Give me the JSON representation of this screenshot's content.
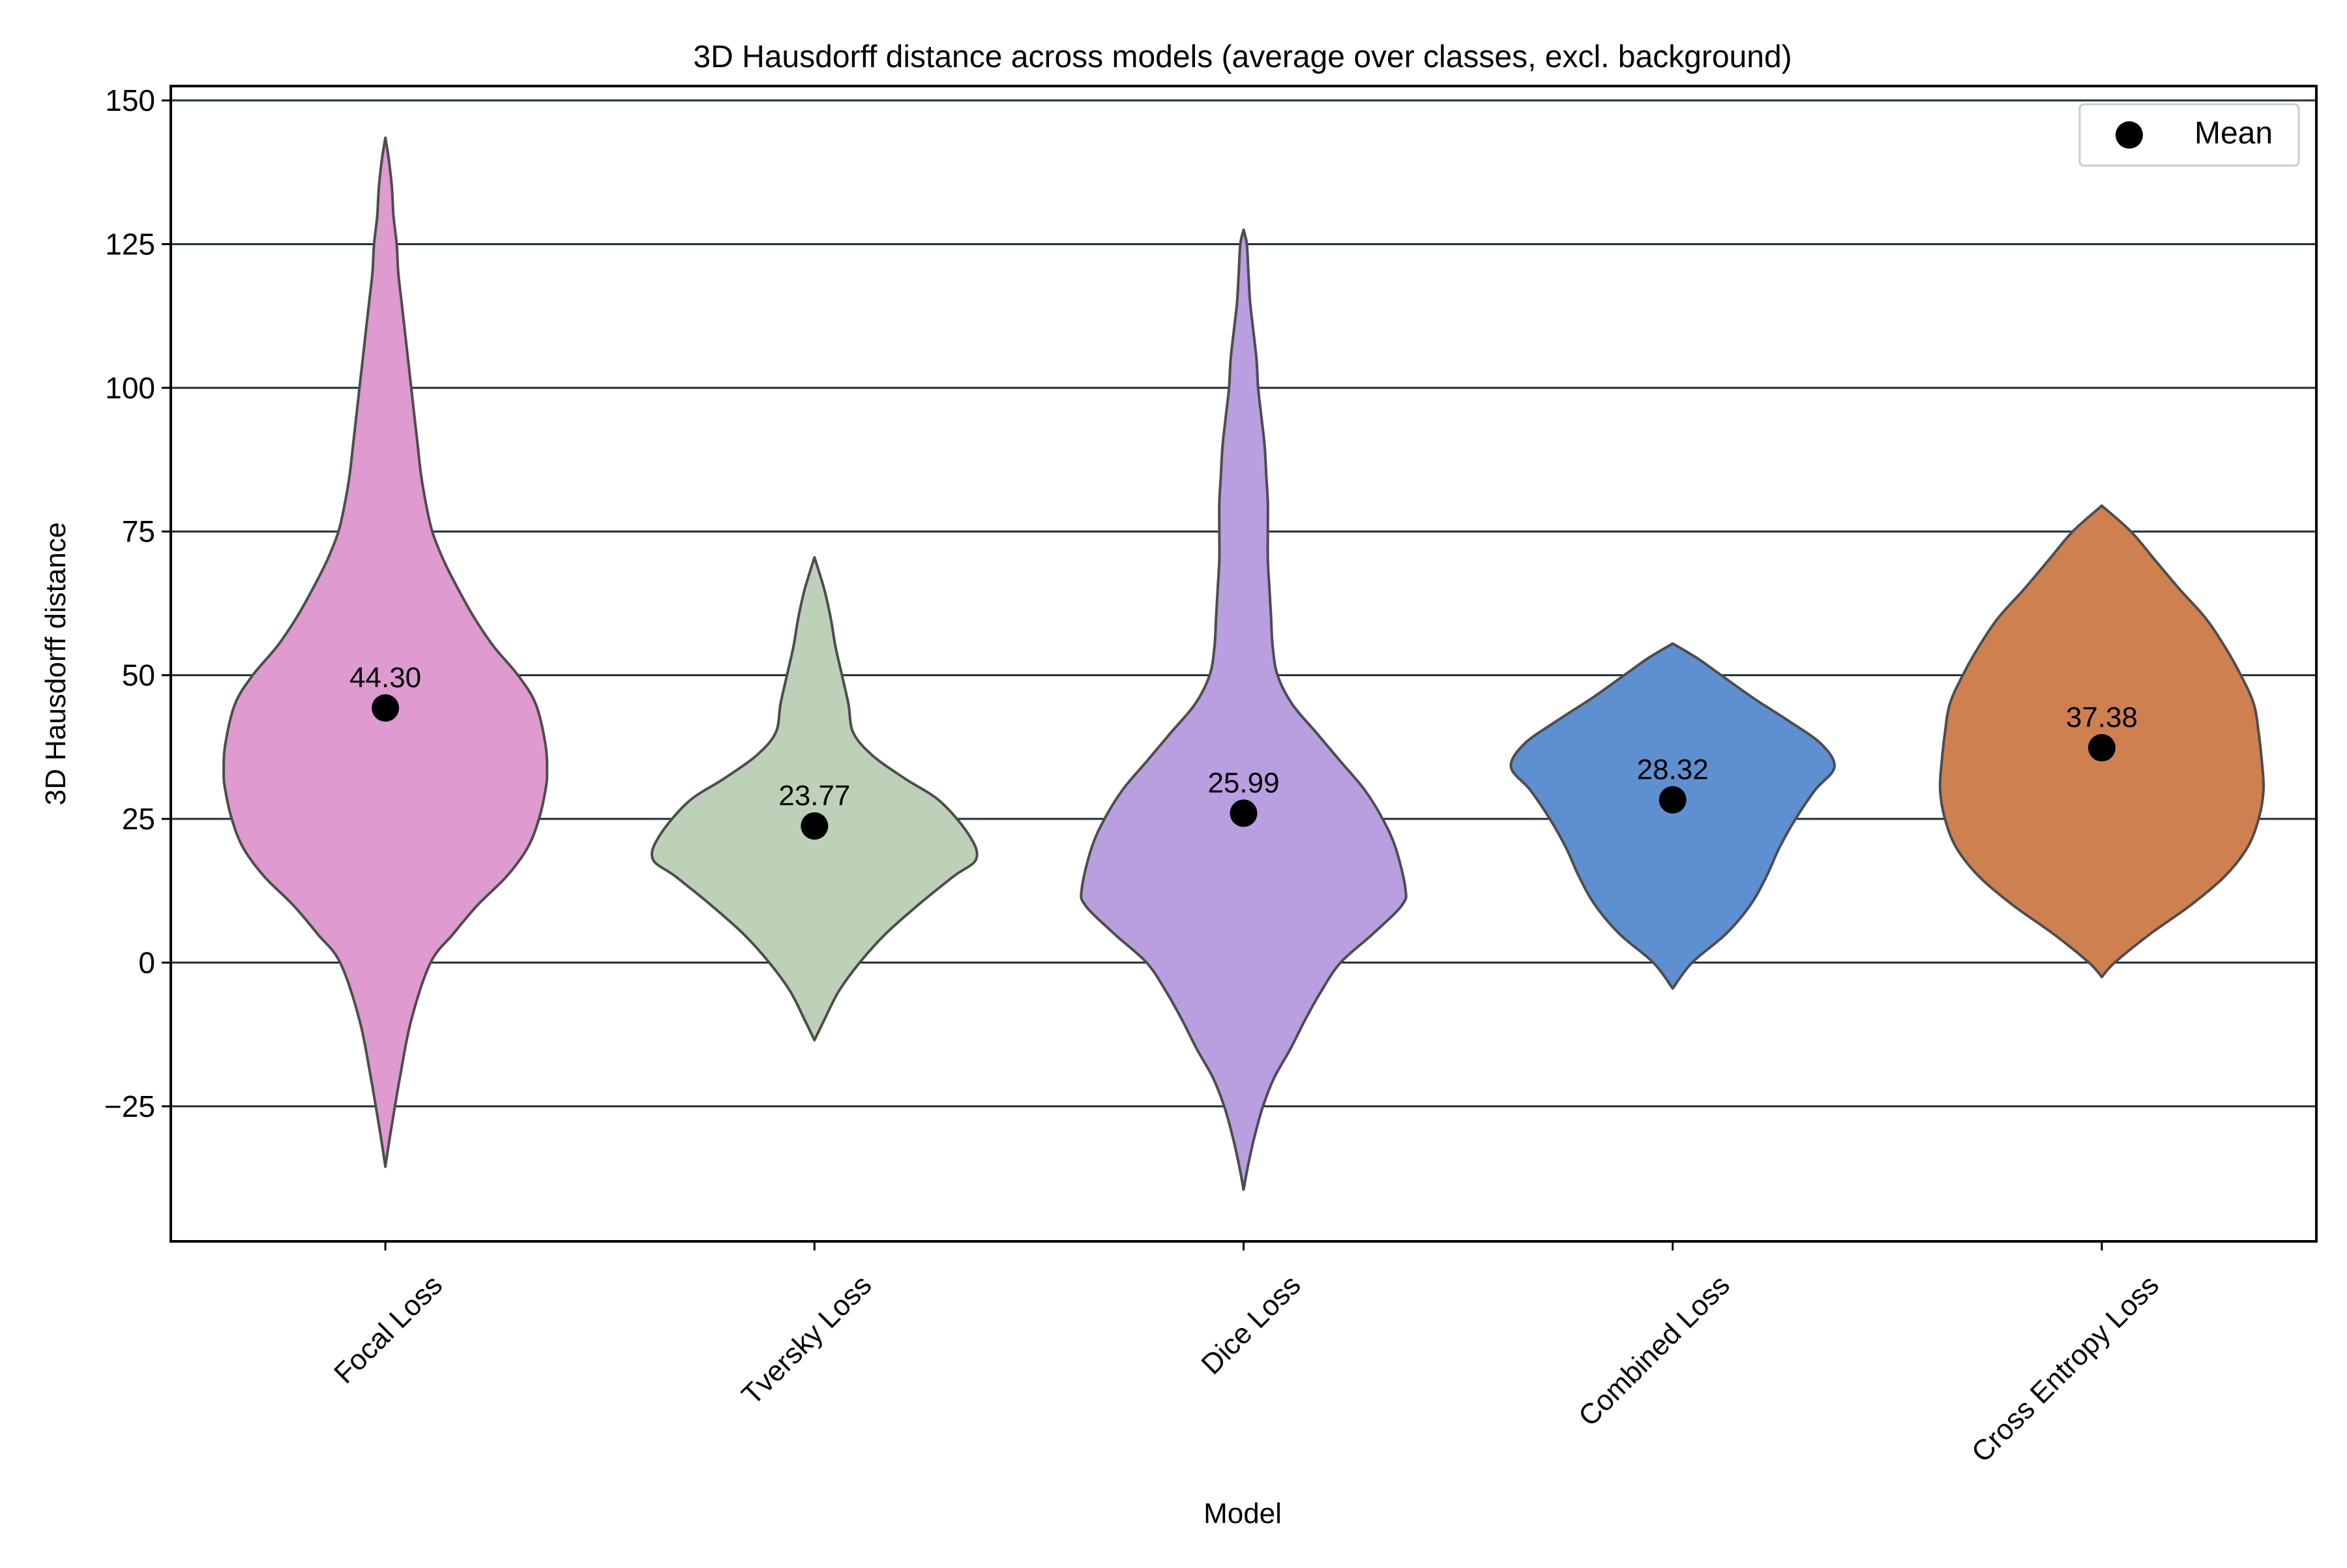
{
  "chart_data": {
    "type": "violin",
    "title": "3D Hausdorff distance across models (average over classes, excl. background)",
    "xlabel": "Model",
    "ylabel": "3D Hausdorff distance",
    "ylim": [
      -48.5,
      152.5
    ],
    "yticks": [
      -25,
      0,
      25,
      50,
      75,
      100,
      125,
      150
    ],
    "ytick_labels": [
      "−25",
      "0",
      "25",
      "50",
      "75",
      "100",
      "125",
      "150"
    ],
    "grid": "horizontal",
    "legend": {
      "position": "top-right",
      "entries": [
        {
          "label": "Mean",
          "marker": "circle",
          "color": "#000000"
        }
      ]
    },
    "categories": [
      "Focal Loss",
      "Tversky Loss",
      "Dice Loss",
      "Combined Loss",
      "Cross Entropy Loss"
    ],
    "series": [
      {
        "category": "Focal Loss",
        "color": "#df9ad0",
        "mean": 44.3,
        "mean_label": "44.30",
        "min": -35.5,
        "max": 143.5,
        "profile": [
          [
            -35.5,
            0
          ],
          [
            -30,
            3
          ],
          [
            -20,
            9
          ],
          [
            -10,
            16
          ],
          [
            0,
            28
          ],
          [
            5,
            42
          ],
          [
            10,
            57
          ],
          [
            15,
            75
          ],
          [
            20,
            88
          ],
          [
            25,
            95
          ],
          [
            30,
            99
          ],
          [
            33,
            100
          ],
          [
            38,
            99
          ],
          [
            45,
            93
          ],
          [
            50,
            82
          ],
          [
            55,
            67
          ],
          [
            60,
            55
          ],
          [
            65,
            45
          ],
          [
            70,
            36
          ],
          [
            75,
            29
          ],
          [
            80,
            25
          ],
          [
            85,
            22
          ],
          [
            90,
            20
          ],
          [
            95,
            18
          ],
          [
            100,
            16
          ],
          [
            105,
            14
          ],
          [
            110,
            12
          ],
          [
            115,
            10
          ],
          [
            120,
            8
          ],
          [
            125,
            7
          ],
          [
            130,
            5
          ],
          [
            135,
            4
          ],
          [
            140,
            2
          ],
          [
            143.5,
            0
          ]
        ]
      },
      {
        "category": "Tversky Loss",
        "color": "#bdd1b8",
        "mean": 23.77,
        "mean_label": "23.77",
        "min": -13.5,
        "max": 70.5,
        "profile": [
          [
            -13.5,
            0
          ],
          [
            -10,
            6
          ],
          [
            -5,
            15
          ],
          [
            0,
            28
          ],
          [
            5,
            44
          ],
          [
            10,
            64
          ],
          [
            15,
            86
          ],
          [
            18,
            100
          ],
          [
            22,
            96
          ],
          [
            28,
            78
          ],
          [
            32,
            56
          ],
          [
            36,
            36
          ],
          [
            40,
            24
          ],
          [
            45,
            21
          ],
          [
            50,
            17
          ],
          [
            55,
            13
          ],
          [
            60,
            10
          ],
          [
            65,
            6
          ],
          [
            70.5,
            0
          ]
        ]
      },
      {
        "category": "Dice Loss",
        "color": "#b99ee0",
        "mean": 25.99,
        "mean_label": "25.99",
        "min": -39.5,
        "max": 127.5,
        "profile": [
          [
            -39.5,
            0
          ],
          [
            -35,
            3
          ],
          [
            -30,
            7
          ],
          [
            -25,
            12
          ],
          [
            -20,
            19
          ],
          [
            -15,
            29
          ],
          [
            -10,
            38
          ],
          [
            -5,
            48
          ],
          [
            0,
            60
          ],
          [
            5,
            80
          ],
          [
            10,
            98
          ],
          [
            13,
            100
          ],
          [
            20,
            94
          ],
          [
            25,
            86
          ],
          [
            30,
            75
          ],
          [
            35,
            60
          ],
          [
            40,
            45
          ],
          [
            45,
            30
          ],
          [
            50,
            21
          ],
          [
            55,
            18
          ],
          [
            60,
            17
          ],
          [
            65,
            16
          ],
          [
            70,
            15
          ],
          [
            75,
            15
          ],
          [
            80,
            15
          ],
          [
            85,
            14
          ],
          [
            90,
            13
          ],
          [
            95,
            11
          ],
          [
            100,
            9
          ],
          [
            105,
            8
          ],
          [
            110,
            6
          ],
          [
            115,
            4
          ],
          [
            120,
            3
          ],
          [
            125,
            2
          ],
          [
            127.5,
            0
          ]
        ]
      },
      {
        "category": "Combined Loss",
        "color": "#5e8fd1",
        "mean": 28.32,
        "mean_label": "28.32",
        "min": -4.5,
        "max": 55.5,
        "profile": [
          [
            -4.5,
            0
          ],
          [
            0,
            12
          ],
          [
            5,
            33
          ],
          [
            10,
            48
          ],
          [
            15,
            58
          ],
          [
            20,
            66
          ],
          [
            25,
            76
          ],
          [
            30,
            88
          ],
          [
            34,
            100
          ],
          [
            38,
            92
          ],
          [
            42,
            72
          ],
          [
            46,
            50
          ],
          [
            50,
            30
          ],
          [
            53,
            15
          ],
          [
            55.5,
            0
          ]
        ]
      },
      {
        "category": "Cross Entropy Loss",
        "color": "#cf8050",
        "mean": 37.38,
        "mean_label": "37.38",
        "min": -2.5,
        "max": 79.5,
        "profile": [
          [
            -2.5,
            0
          ],
          [
            0,
            8
          ],
          [
            5,
            30
          ],
          [
            10,
            55
          ],
          [
            15,
            76
          ],
          [
            20,
            90
          ],
          [
            25,
            97
          ],
          [
            30,
            100
          ],
          [
            35,
            99
          ],
          [
            40,
            97
          ],
          [
            45,
            94
          ],
          [
            50,
            86
          ],
          [
            55,
            76
          ],
          [
            60,
            64
          ],
          [
            65,
            48
          ],
          [
            70,
            33
          ],
          [
            75,
            18
          ],
          [
            79.5,
            0
          ]
        ]
      }
    ]
  }
}
